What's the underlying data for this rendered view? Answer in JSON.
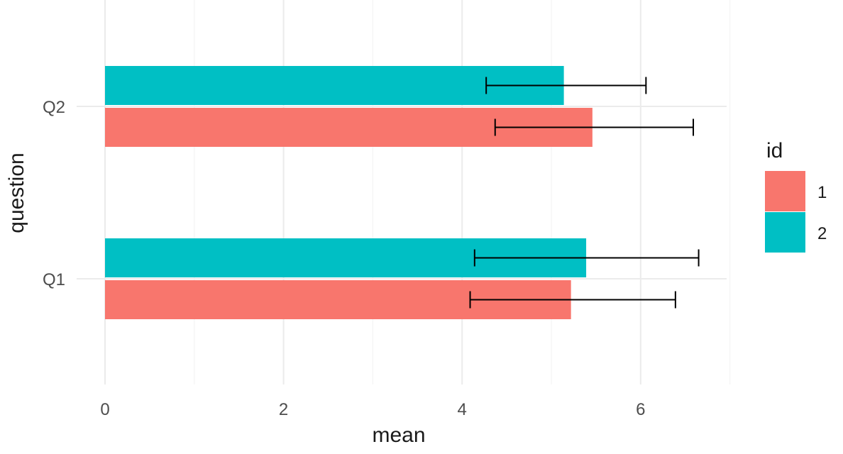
{
  "chart_data": {
    "type": "bar",
    "orientation": "horizontal",
    "title": "",
    "xlabel": "mean",
    "ylabel": "question",
    "categories": [
      "Q1",
      "Q2"
    ],
    "xlim": [
      0,
      7
    ],
    "x_ticks": [
      0,
      2,
      4,
      6
    ],
    "x_tick_labels": [
      "0",
      "2",
      "4",
      "6"
    ],
    "grid": true,
    "legend": {
      "title": "id",
      "placement": "right"
    },
    "series": [
      {
        "name": "1",
        "color": "#F8766D",
        "values": [
          5.22,
          5.46
        ],
        "error_low": [
          4.09,
          4.37
        ],
        "error_high": [
          6.39,
          6.59
        ]
      },
      {
        "name": "2",
        "color": "#00BFC4",
        "values": [
          5.39,
          5.14
        ],
        "error_low": [
          4.14,
          4.27
        ],
        "error_high": [
          6.65,
          6.06
        ]
      }
    ]
  }
}
